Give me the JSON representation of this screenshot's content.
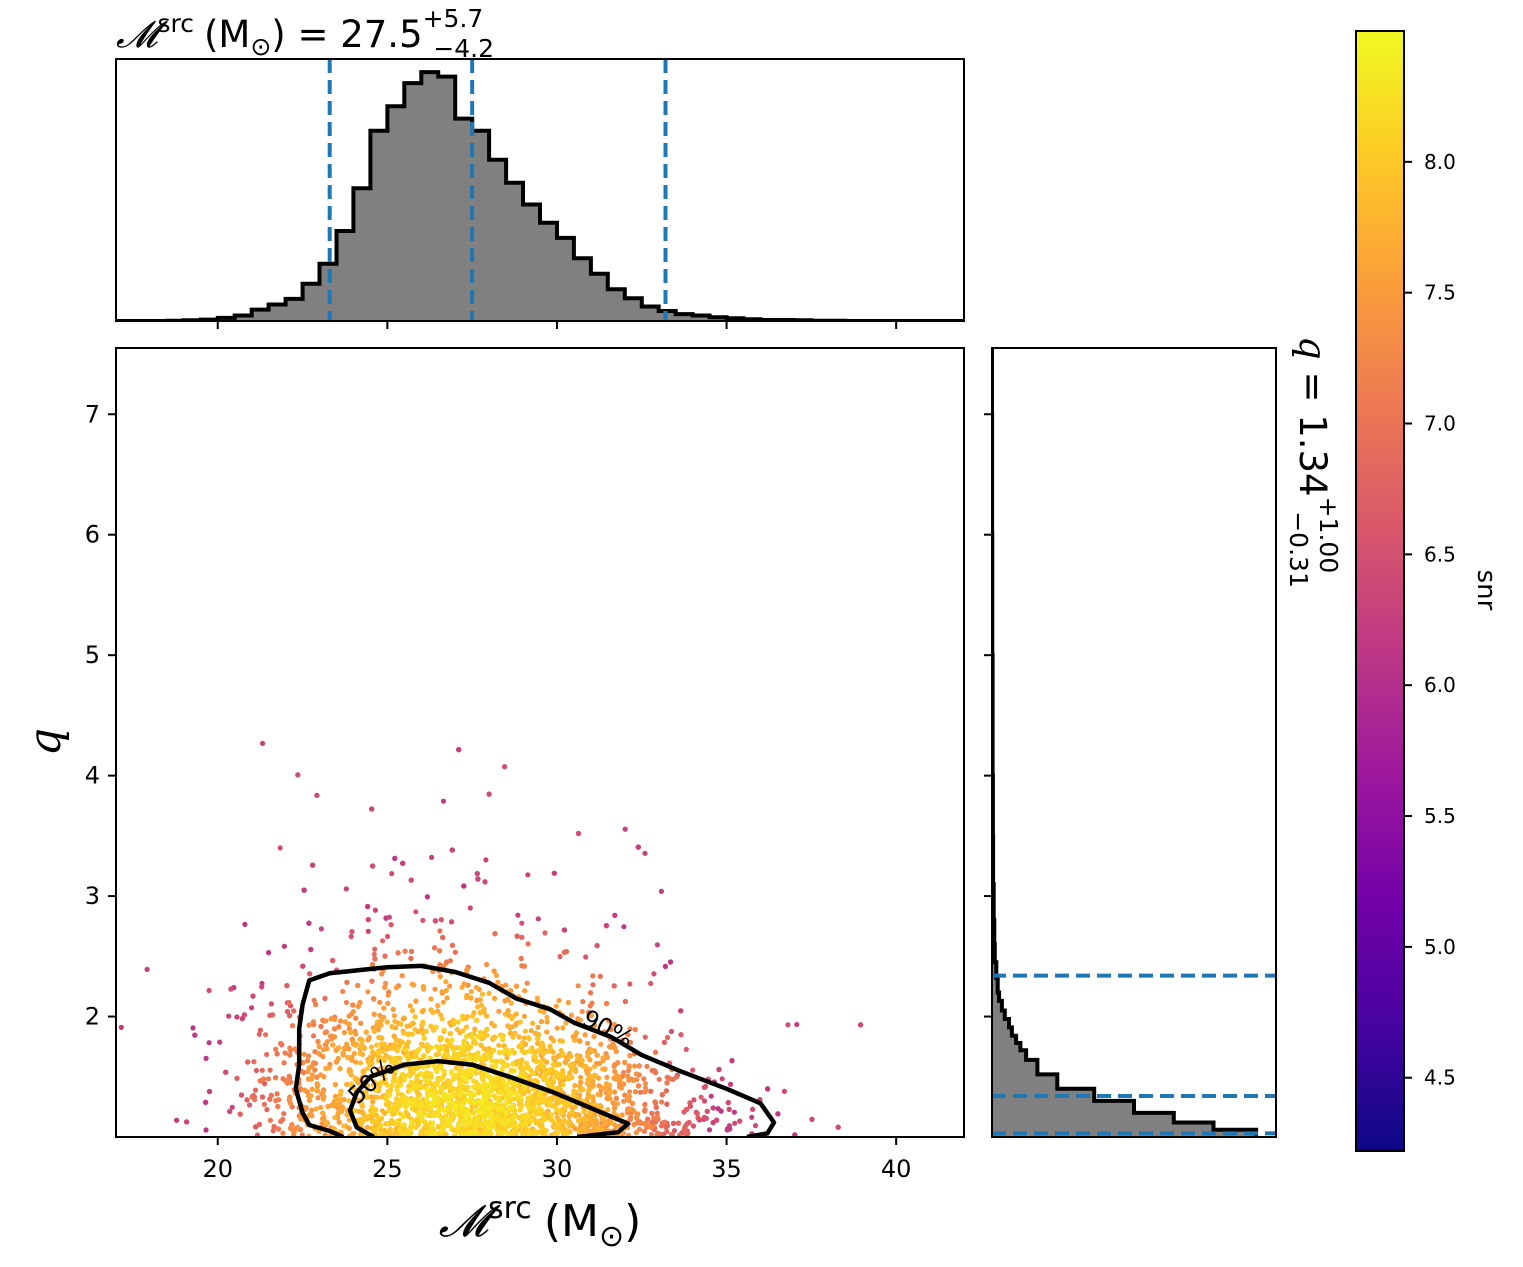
{
  "chart_data": {
    "type": "scatter",
    "main": {
      "x_values": {
        "min": 17,
        "max": 42
      },
      "y_values": {
        "min": 1.0,
        "max": 7.55
      },
      "xlim": [
        17,
        42
      ],
      "ylim": [
        1.0,
        7.55
      ],
      "xticks": [
        20,
        25,
        30,
        35,
        40
      ],
      "yticks": [
        2,
        3,
        4,
        5,
        6,
        7
      ],
      "xlabel_symbol": "𝓜",
      "xlabel_sup": "src",
      "xlabel_unit": "(M",
      "xlabel_unit_sub": "⊙",
      "xlabel_close": ")",
      "ylabel": "q",
      "contours": [
        {
          "label": "90%",
          "points": [
            [
              23.7,
              1.0
            ],
            [
              23.3,
              1.05
            ],
            [
              22.7,
              1.1
            ],
            [
              22.5,
              1.2
            ],
            [
              22.3,
              1.4
            ],
            [
              22.4,
              1.6
            ],
            [
              22.4,
              1.9
            ],
            [
              22.5,
              2.1
            ],
            [
              22.7,
              2.3
            ],
            [
              23.3,
              2.36
            ],
            [
              24.0,
              2.38
            ],
            [
              25.0,
              2.41
            ],
            [
              26.0,
              2.42
            ],
            [
              27.0,
              2.37
            ],
            [
              28.0,
              2.28
            ],
            [
              28.8,
              2.15
            ],
            [
              29.8,
              2.06
            ],
            [
              30.5,
              1.95
            ],
            [
              31.6,
              1.83
            ],
            [
              32.5,
              1.68
            ],
            [
              33.6,
              1.55
            ],
            [
              35.0,
              1.4
            ],
            [
              36.0,
              1.28
            ],
            [
              36.4,
              1.12
            ],
            [
              36.2,
              1.03
            ],
            [
              35.6,
              1.0
            ]
          ]
        },
        {
          "label": "50%",
          "points": [
            [
              24.6,
              1.0
            ],
            [
              24.1,
              1.08
            ],
            [
              23.9,
              1.22
            ],
            [
              24.1,
              1.37
            ],
            [
              24.5,
              1.5
            ],
            [
              25.5,
              1.6
            ],
            [
              26.5,
              1.63
            ],
            [
              27.5,
              1.6
            ],
            [
              28.6,
              1.5
            ],
            [
              29.9,
              1.37
            ],
            [
              31.0,
              1.24
            ],
            [
              32.1,
              1.11
            ],
            [
              31.8,
              1.04
            ],
            [
              30.6,
              1.0
            ]
          ]
        }
      ],
      "label_90": "90%",
      "label_50": "50%"
    },
    "top_hist": {
      "title_symbol": "𝓜",
      "title_sup": "src",
      "title_unit": "(M",
      "title_unit_sub": "⊙",
      "title_rest": ") = 27.5",
      "title_sup_err": "+5.7",
      "title_sub_err": "−4.2",
      "bin_edges": [
        17.0,
        17.5,
        18.0,
        18.5,
        19.0,
        19.5,
        20.0,
        20.5,
        21.0,
        21.5,
        22.0,
        22.5,
        23.0,
        23.5,
        24.0,
        24.5,
        25.0,
        25.5,
        26.0,
        26.5,
        27.0,
        27.5,
        28.0,
        28.5,
        29.0,
        29.5,
        30.0,
        30.5,
        31.0,
        31.5,
        32.0,
        32.5,
        33.0,
        33.5,
        34.0,
        34.5,
        35.0,
        35.5,
        36.0,
        36.5,
        37.0,
        37.5,
        38.0,
        38.5,
        39.0,
        39.5,
        40.0,
        40.5,
        41.0,
        41.5,
        42.0
      ],
      "counts": [
        0,
        0,
        0,
        0.1,
        0.2,
        0.4,
        0.9,
        1.6,
        3.3,
        4.8,
        6.4,
        10.8,
        16.6,
        26.1,
        38.5,
        55.2,
        62.3,
        69.0,
        72.2,
        70.9,
        58.7,
        55.2,
        46.8,
        40.1,
        33.8,
        28.5,
        24.1,
        18.2,
        13.7,
        9.2,
        6.6,
        4.2,
        2.9,
        2.0,
        1.6,
        1.1,
        0.8,
        0.5,
        0.3,
        0.3,
        0.2,
        0.1,
        0.1,
        0,
        0,
        0,
        0,
        0,
        0,
        0
      ],
      "hist_max": 76,
      "quantiles": [
        23.3,
        27.5,
        33.2
      ],
      "xticks": [
        20,
        25,
        30,
        35,
        40
      ]
    },
    "right_hist": {
      "title_symbol": "q",
      "title_rest": " = 1.34",
      "title_sup_err": "+1.00",
      "title_sub_err": "−0.31",
      "bin_edges": [
        1.0,
        1.06,
        1.12,
        1.2,
        1.3,
        1.4,
        1.52,
        1.64,
        1.72,
        1.78,
        1.84,
        1.91,
        1.98,
        2.05,
        2.13,
        2.2,
        2.32,
        2.45,
        2.6,
        2.8,
        3.1,
        3.5,
        4.0,
        5.0,
        6.0,
        7.0,
        7.55
      ],
      "counts": [
        0.93,
        0.78,
        0.64,
        0.5,
        0.36,
        0.23,
        0.16,
        0.12,
        0.1,
        0.085,
        0.07,
        0.06,
        0.045,
        0.035,
        0.025,
        0.02,
        0.015,
        0.01,
        0.008,
        0.006,
        0.004,
        0.003,
        0.002,
        0.001,
        0.0005,
        0.0
      ],
      "quantiles": [
        1.03,
        1.34,
        2.34
      ],
      "yticks": [
        2,
        3,
        4,
        5,
        6,
        7
      ]
    },
    "colorbar": {
      "label": "snr",
      "min": 4.22,
      "max": 8.5,
      "ticks": [
        "4.5",
        "5.0",
        "5.5",
        "6.0",
        "6.5",
        "7.0",
        "7.5",
        "8.0"
      ],
      "colormap": "plasma",
      "colors": [
        "#0d0887",
        "#46039f",
        "#7201a8",
        "#9c179e",
        "#bd3786",
        "#d8576b",
        "#ed7953",
        "#fb9f3a",
        "#fdca26",
        "#f0f921"
      ]
    },
    "style": {
      "hist_fill": "#808080",
      "quantile_color": "#1f77b4",
      "contour_color": "#000000"
    }
  }
}
